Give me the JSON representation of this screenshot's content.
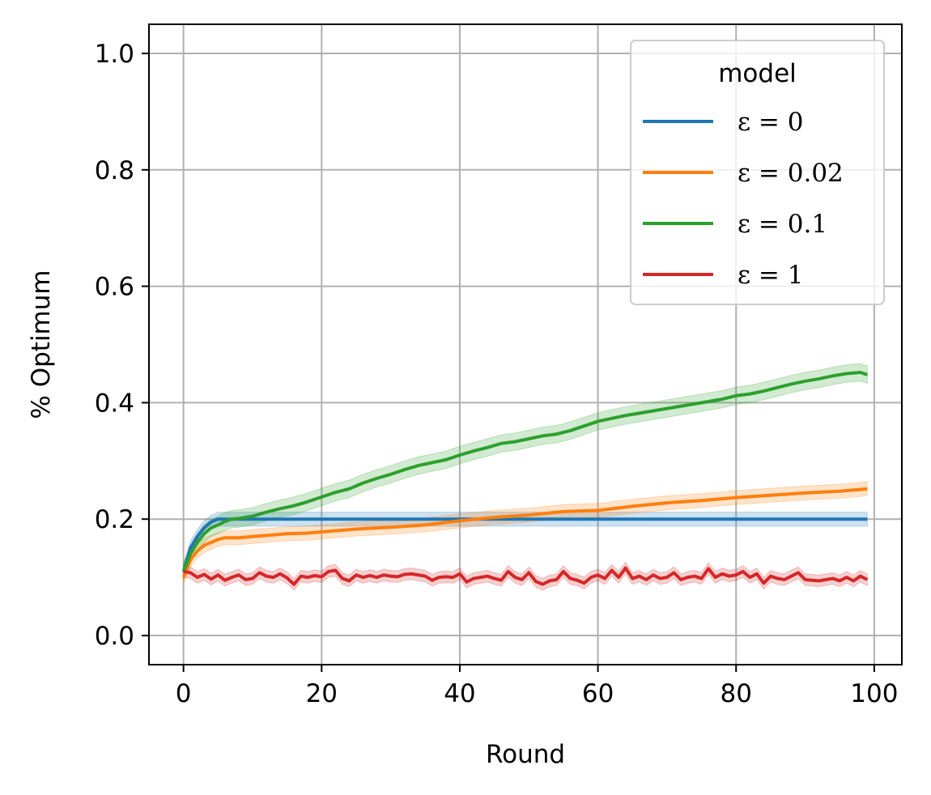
{
  "chart_data": {
    "type": "line",
    "xlabel": "Round",
    "ylabel": "% Optimum",
    "xlim": [
      -5,
      104
    ],
    "ylim": [
      -0.05,
      1.05
    ],
    "xticks": [
      0,
      20,
      40,
      60,
      80,
      100
    ],
    "yticks": [
      0.0,
      0.2,
      0.4,
      0.6,
      0.8,
      1.0
    ],
    "xtick_labels": [
      "0",
      "20",
      "40",
      "60",
      "80",
      "100"
    ],
    "ytick_labels": [
      "0.0",
      "0.2",
      "0.4",
      "0.6",
      "0.8",
      "1.0"
    ],
    "grid": true,
    "legend": {
      "title": "model",
      "placement": "top-right"
    },
    "series": [
      {
        "name": "ε = 0",
        "color": "#1f77b4",
        "band_halfwidth": 0.012,
        "x": [
          0,
          1,
          2,
          3,
          4,
          5,
          6,
          7,
          8,
          10,
          99
        ],
        "y": [
          0.11,
          0.15,
          0.17,
          0.185,
          0.195,
          0.2,
          0.2,
          0.2,
          0.2,
          0.2,
          0.2
        ]
      },
      {
        "name": "ε = 0.02",
        "color": "#ff7f0e",
        "band_halfwidth": 0.012,
        "x": [
          0,
          1,
          2,
          3,
          4,
          5,
          6,
          8,
          10,
          12,
          15,
          18,
          20,
          25,
          30,
          35,
          40,
          45,
          50,
          55,
          60,
          65,
          70,
          75,
          80,
          85,
          90,
          95,
          99
        ],
        "y": [
          0.1,
          0.13,
          0.145,
          0.155,
          0.16,
          0.165,
          0.168,
          0.168,
          0.17,
          0.172,
          0.175,
          0.176,
          0.178,
          0.183,
          0.186,
          0.19,
          0.197,
          0.203,
          0.207,
          0.213,
          0.215,
          0.222,
          0.228,
          0.232,
          0.237,
          0.241,
          0.245,
          0.248,
          0.252
        ]
      },
      {
        "name": "ε = 0.1",
        "color": "#2ca02c",
        "band_halfwidth": 0.015,
        "x": [
          0,
          1,
          2,
          3,
          4,
          5,
          6,
          7,
          8,
          10,
          12,
          14,
          16,
          18,
          20,
          22,
          24,
          26,
          28,
          30,
          32,
          34,
          36,
          38,
          40,
          42,
          44,
          46,
          48,
          50,
          52,
          54,
          56,
          58,
          60,
          62,
          64,
          66,
          68,
          70,
          72,
          74,
          76,
          78,
          80,
          82,
          84,
          86,
          88,
          90,
          92,
          94,
          96,
          98,
          99
        ],
        "y": [
          0.11,
          0.14,
          0.16,
          0.175,
          0.185,
          0.19,
          0.196,
          0.2,
          0.201,
          0.205,
          0.212,
          0.218,
          0.223,
          0.23,
          0.238,
          0.246,
          0.252,
          0.262,
          0.27,
          0.277,
          0.285,
          0.292,
          0.297,
          0.302,
          0.31,
          0.317,
          0.323,
          0.33,
          0.333,
          0.338,
          0.343,
          0.346,
          0.352,
          0.36,
          0.368,
          0.373,
          0.378,
          0.382,
          0.386,
          0.39,
          0.394,
          0.398,
          0.402,
          0.406,
          0.412,
          0.415,
          0.42,
          0.426,
          0.432,
          0.437,
          0.441,
          0.446,
          0.45,
          0.452,
          0.448
        ]
      },
      {
        "name": "ε = 1",
        "color": "#d62728",
        "band_halfwidth": 0.01,
        "x": [
          0,
          1,
          2,
          3,
          4,
          5,
          6,
          7,
          8,
          9,
          10,
          11,
          12,
          13,
          14,
          15,
          16,
          17,
          18,
          19,
          20,
          21,
          22,
          23,
          24,
          25,
          26,
          27,
          28,
          29,
          30,
          31,
          32,
          33,
          34,
          35,
          36,
          37,
          38,
          39,
          40,
          41,
          42,
          43,
          44,
          45,
          46,
          47,
          48,
          49,
          50,
          51,
          52,
          53,
          54,
          55,
          56,
          57,
          58,
          59,
          60,
          61,
          62,
          63,
          64,
          65,
          66,
          67,
          68,
          69,
          70,
          71,
          72,
          73,
          74,
          75,
          76,
          77,
          78,
          79,
          80,
          81,
          82,
          83,
          84,
          85,
          86,
          87,
          88,
          89,
          90,
          91,
          92,
          93,
          94,
          95,
          96,
          97,
          98,
          99
        ],
        "y": [
          0.11,
          0.108,
          0.1,
          0.105,
          0.097,
          0.104,
          0.095,
          0.1,
          0.104,
          0.096,
          0.098,
          0.108,
          0.102,
          0.1,
          0.106,
          0.099,
          0.088,
          0.102,
          0.1,
          0.103,
          0.101,
          0.11,
          0.112,
          0.098,
          0.094,
          0.104,
          0.1,
          0.103,
          0.1,
          0.104,
          0.102,
          0.101,
          0.105,
          0.106,
          0.104,
          0.102,
          0.095,
          0.1,
          0.101,
          0.1,
          0.106,
          0.092,
          0.098,
          0.1,
          0.102,
          0.098,
          0.095,
          0.11,
          0.1,
          0.096,
          0.108,
          0.093,
          0.088,
          0.094,
          0.096,
          0.11,
          0.098,
          0.095,
          0.09,
          0.1,
          0.104,
          0.098,
          0.112,
          0.1,
          0.116,
          0.098,
          0.102,
          0.096,
          0.104,
          0.098,
          0.1,
          0.108,
          0.096,
          0.1,
          0.102,
          0.098,
          0.115,
          0.1,
          0.106,
          0.102,
          0.104,
          0.11,
          0.1,
          0.106,
          0.09,
          0.102,
          0.098,
          0.096,
          0.102,
          0.108,
          0.096,
          0.095,
          0.094,
          0.096,
          0.098,
          0.094,
          0.1,
          0.094,
          0.102,
          0.096
        ]
      }
    ]
  }
}
